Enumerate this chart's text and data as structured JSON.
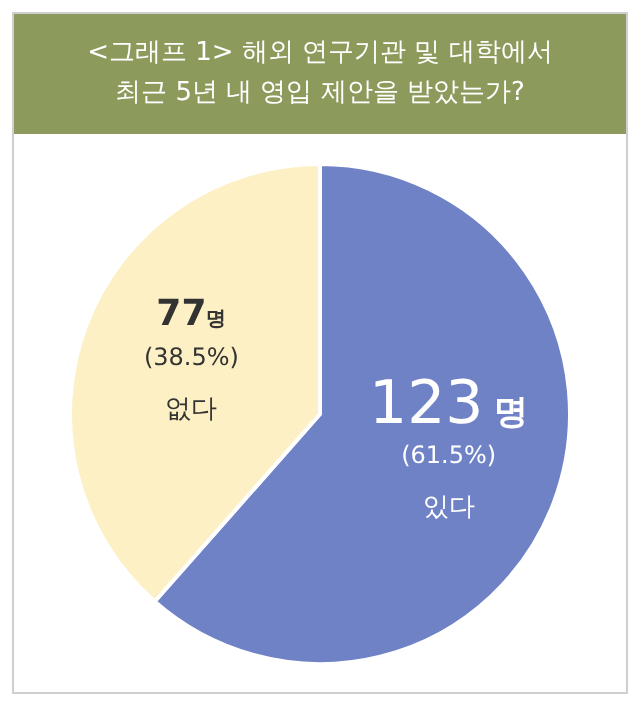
{
  "chart_data": {
    "type": "pie",
    "title": "<그래프 1> 해외 연구기관 및 대학에서\n최근 5년 내 영입 제안을 받았는가?",
    "categories": [
      "있다",
      "없다"
    ],
    "values": [
      123,
      77
    ],
    "colors": [
      "#6f82c6",
      "#fdf0c4"
    ],
    "value_labels": [
      "123명\n(61.5%)",
      "77명\n(38.5%)"
    ],
    "legend": false
  }
}
